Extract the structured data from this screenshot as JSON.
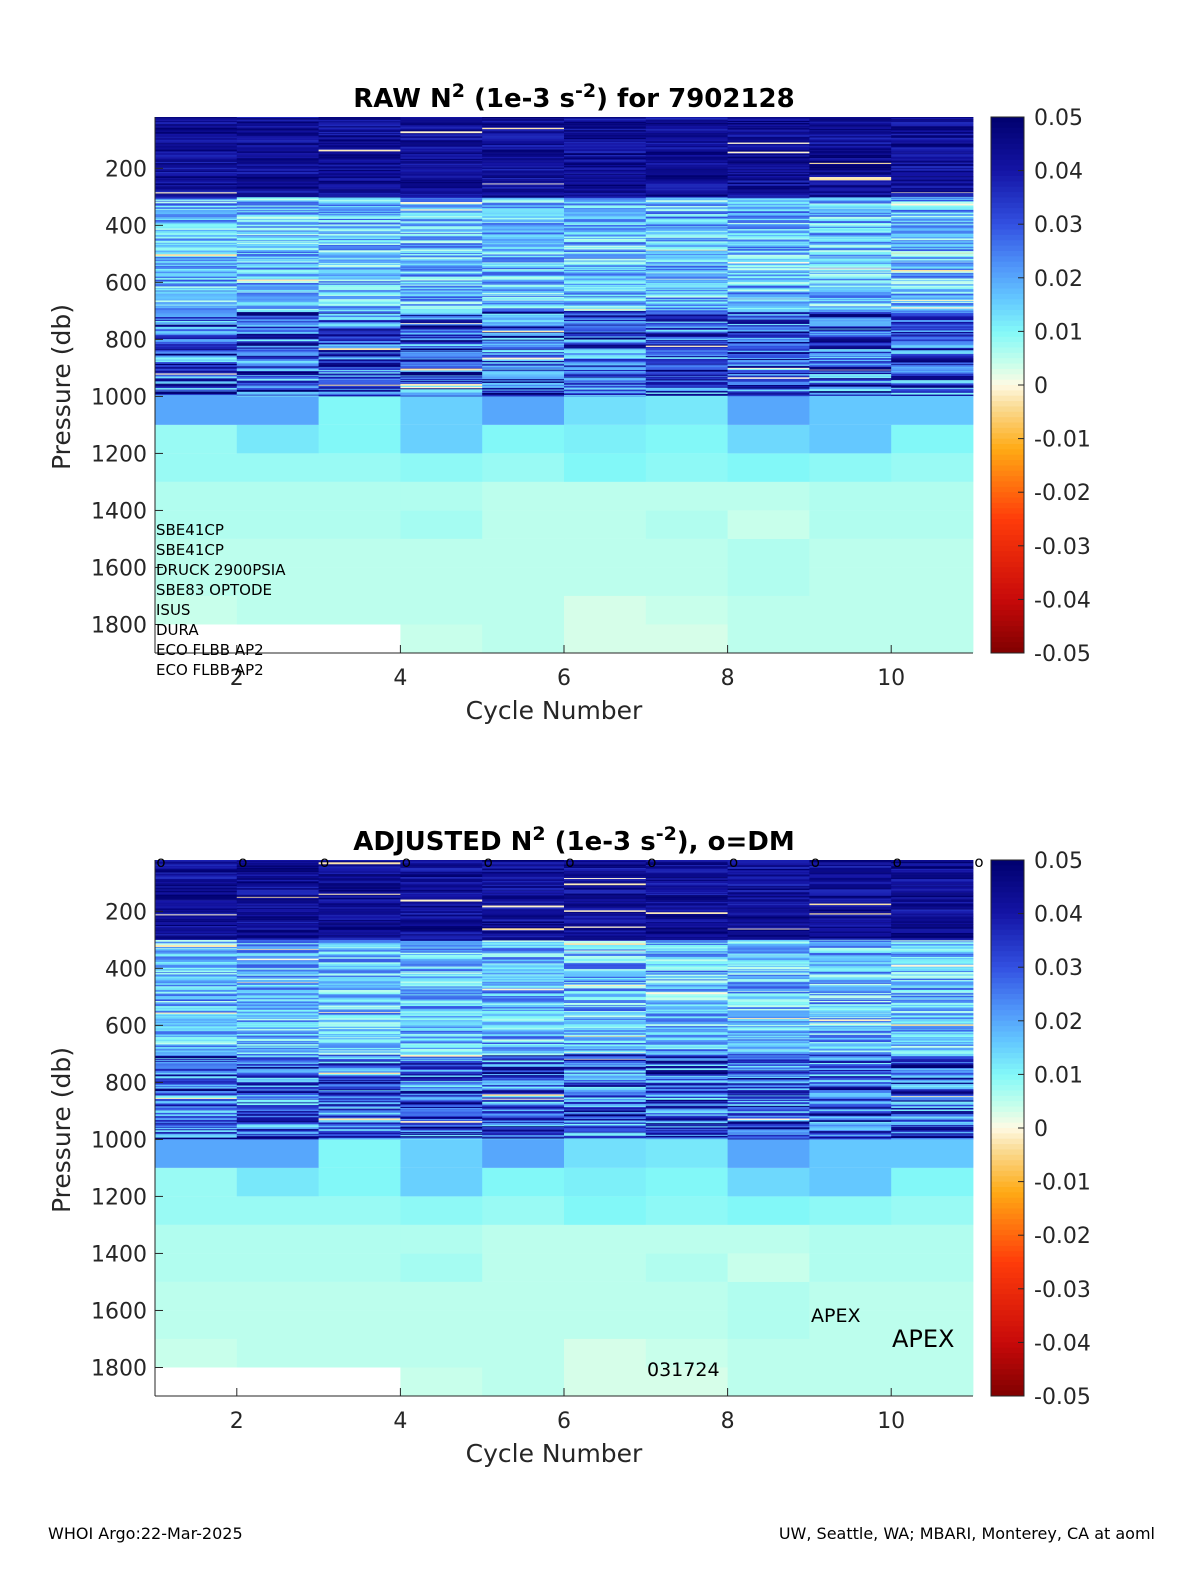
{
  "chart_data": [
    {
      "type": "heatmap",
      "title_parts": [
        "RAW N",
        "2",
        " (1e-3 s",
        "-2",
        ") for 7902128"
      ],
      "xlabel": "Cycle Number",
      "ylabel": "Pressure (db)",
      "xlim": [
        1,
        11
      ],
      "ylim": [
        1900,
        20
      ],
      "xticks": [
        2,
        4,
        6,
        8,
        10
      ],
      "yticks": [
        200,
        400,
        600,
        800,
        1000,
        1200,
        1400,
        1600,
        1800
      ],
      "colorbar": {
        "min": -0.05,
        "max": 0.05,
        "colormap": "jet-like diverging (dark red - orange - cream - cyan - blue - navy)",
        "ticks": [
          "0.05",
          "0.04",
          "0.03",
          "0.02",
          "0.01",
          "0",
          "-0.01",
          "-0.02",
          "-0.03",
          "-0.04",
          "-0.05"
        ]
      },
      "cycles": [
        1,
        2,
        3,
        4,
        5,
        6,
        7,
        8,
        9,
        10
      ],
      "layers": [
        {
          "p": [
            1000,
            1100
          ],
          "values": [
            0.02,
            0.02,
            0.01,
            0.015,
            0.02,
            0.013,
            0.012,
            0.02,
            0.016,
            0.016
          ]
        },
        {
          "p": [
            1100,
            1200
          ],
          "values": [
            0.008,
            0.012,
            0.01,
            0.015,
            0.01,
            0.011,
            0.01,
            0.014,
            0.016,
            0.01
          ]
        },
        {
          "p": [
            1200,
            1300
          ],
          "values": [
            0.008,
            0.008,
            0.008,
            0.009,
            0.008,
            0.01,
            0.009,
            0.01,
            0.009,
            0.008
          ]
        },
        {
          "p": [
            1300,
            1400
          ],
          "values": [
            0.006,
            0.006,
            0.006,
            0.006,
            0.005,
            0.005,
            0.005,
            0.005,
            0.006,
            0.006
          ]
        },
        {
          "p": [
            1400,
            1500
          ],
          "values": [
            0.006,
            0.006,
            0.006,
            0.007,
            0.005,
            0.005,
            0.006,
            0.004,
            0.006,
            0.006
          ]
        },
        {
          "p": [
            1500,
            1600
          ],
          "values": [
            0.005,
            0.005,
            0.005,
            0.005,
            0.005,
            0.005,
            0.005,
            0.006,
            0.005,
            0.005
          ]
        },
        {
          "p": [
            1600,
            1700
          ],
          "values": [
            0.005,
            0.005,
            0.005,
            0.005,
            0.005,
            0.005,
            0.005,
            0.006,
            0.005,
            0.005
          ]
        },
        {
          "p": [
            1700,
            1800
          ],
          "values": [
            0.004,
            0.005,
            0.005,
            0.005,
            0.005,
            0.003,
            0.004,
            0.005,
            0.005,
            0.005
          ]
        },
        {
          "p": [
            1800,
            1900
          ],
          "values": [
            null,
            null,
            null,
            0.004,
            0.005,
            0.003,
            0.003,
            0.005,
            0.005,
            0.005
          ]
        }
      ],
      "annotations": [
        "SBE41CP",
        "SBE41CP",
        "DRUCK 2900PSIA",
        "SBE83 OPTODE",
        "ISUS",
        "DURA",
        "ECO FLBB AP2",
        "ECO FLBB AP2"
      ]
    },
    {
      "type": "heatmap",
      "title_parts": [
        "ADJUSTED N",
        "2",
        " (1e-3 s",
        "-2",
        "), o=DM"
      ],
      "xlabel": "Cycle Number",
      "ylabel": "Pressure (db)",
      "xlim": [
        1,
        11
      ],
      "ylim": [
        1900,
        20
      ],
      "xticks": [
        2,
        4,
        6,
        8,
        10
      ],
      "yticks": [
        200,
        400,
        600,
        800,
        1000,
        1200,
        1400,
        1600,
        1800
      ],
      "colorbar": {
        "min": -0.05,
        "max": 0.05,
        "colormap": "jet-like diverging (dark red - orange - cream - cyan - blue - navy)",
        "ticks": [
          "0.05",
          "0.04",
          "0.03",
          "0.02",
          "0.01",
          "0",
          "-0.01",
          "-0.02",
          "-0.03",
          "-0.04",
          "-0.05"
        ]
      },
      "dm_marker": "o",
      "dm_cycles": [
        1,
        2,
        3,
        4,
        5,
        6,
        7,
        8,
        9,
        10,
        11
      ],
      "cycles": [
        1,
        2,
        3,
        4,
        5,
        6,
        7,
        8,
        9,
        10
      ],
      "layers": [
        {
          "p": [
            1000,
            1100
          ],
          "values": [
            0.02,
            0.02,
            0.01,
            0.015,
            0.02,
            0.013,
            0.012,
            0.02,
            0.016,
            0.016
          ]
        },
        {
          "p": [
            1100,
            1200
          ],
          "values": [
            0.008,
            0.012,
            0.01,
            0.015,
            0.01,
            0.011,
            0.01,
            0.014,
            0.016,
            0.01
          ]
        },
        {
          "p": [
            1200,
            1300
          ],
          "values": [
            0.008,
            0.008,
            0.008,
            0.009,
            0.008,
            0.01,
            0.009,
            0.01,
            0.009,
            0.008
          ]
        },
        {
          "p": [
            1300,
            1400
          ],
          "values": [
            0.006,
            0.006,
            0.006,
            0.006,
            0.005,
            0.005,
            0.005,
            0.005,
            0.006,
            0.006
          ]
        },
        {
          "p": [
            1400,
            1500
          ],
          "values": [
            0.006,
            0.006,
            0.006,
            0.007,
            0.005,
            0.005,
            0.006,
            0.004,
            0.006,
            0.006
          ]
        },
        {
          "p": [
            1500,
            1600
          ],
          "values": [
            0.005,
            0.005,
            0.005,
            0.005,
            0.005,
            0.005,
            0.005,
            0.006,
            0.005,
            0.005
          ]
        },
        {
          "p": [
            1600,
            1700
          ],
          "values": [
            0.005,
            0.005,
            0.005,
            0.005,
            0.005,
            0.005,
            0.005,
            0.006,
            0.005,
            0.005
          ]
        },
        {
          "p": [
            1700,
            1800
          ],
          "values": [
            0.004,
            0.005,
            0.005,
            0.005,
            0.005,
            0.003,
            0.004,
            0.005,
            0.005,
            0.005
          ]
        },
        {
          "p": [
            1800,
            1900
          ],
          "values": [
            null,
            null,
            null,
            0.004,
            0.005,
            0.003,
            0.003,
            0.005,
            0.005,
            0.005
          ]
        }
      ],
      "annotations": [
        "APEX",
        "APEX",
        "031724"
      ]
    }
  ],
  "footer": {
    "left": "WHOI Argo:22-Mar-2025",
    "right": "UW, Seattle, WA; MBARI, Monterey, CA at aoml"
  }
}
